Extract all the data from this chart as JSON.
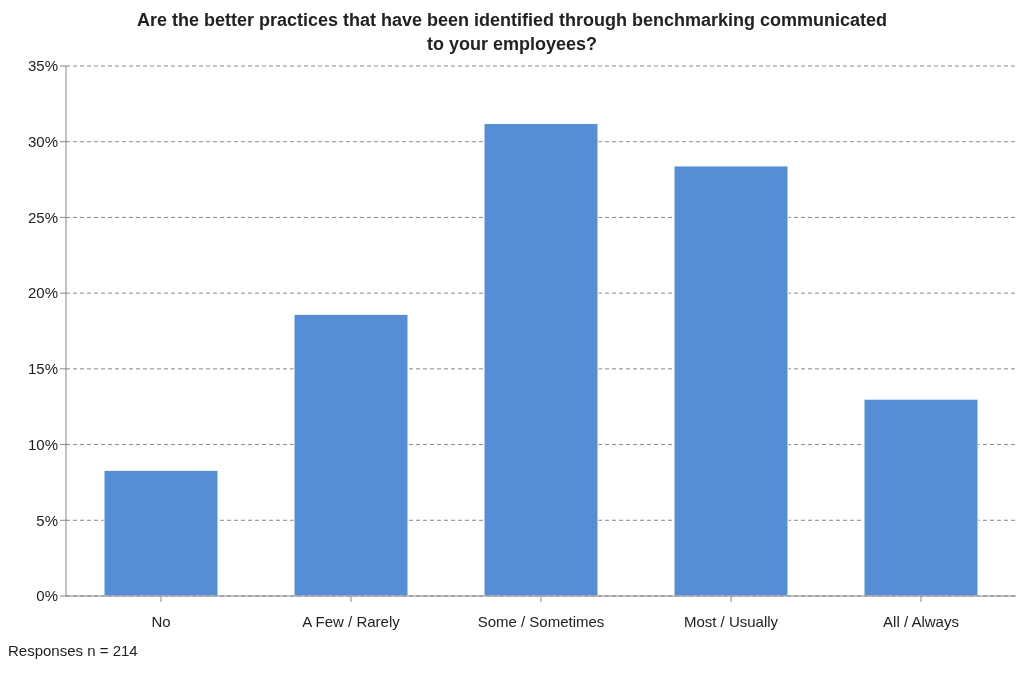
{
  "chart_data": {
    "type": "bar",
    "title": "Are the better practices that have been identified through benchmarking communicated to your employees?",
    "categories": [
      "No",
      "A Few / Rarely",
      "Some / Sometimes",
      "Most / Usually",
      "All / Always"
    ],
    "values": [
      8.3,
      18.6,
      31.2,
      28.4,
      13.0
    ],
    "color": "#558ed5",
    "ylim": [
      0,
      35
    ],
    "yticks": [
      {
        "value": 0,
        "label": "0%"
      },
      {
        "value": 5,
        "label": "5%"
      },
      {
        "value": 10,
        "label": "10%"
      },
      {
        "value": 15,
        "label": "15%"
      },
      {
        "value": 20,
        "label": "20%"
      },
      {
        "value": 25,
        "label": "25%"
      },
      {
        "value": 30,
        "label": "30%"
      },
      {
        "value": 35,
        "label": "35%"
      }
    ],
    "grid": "y",
    "annotations": [
      "Responses n = 214"
    ]
  }
}
